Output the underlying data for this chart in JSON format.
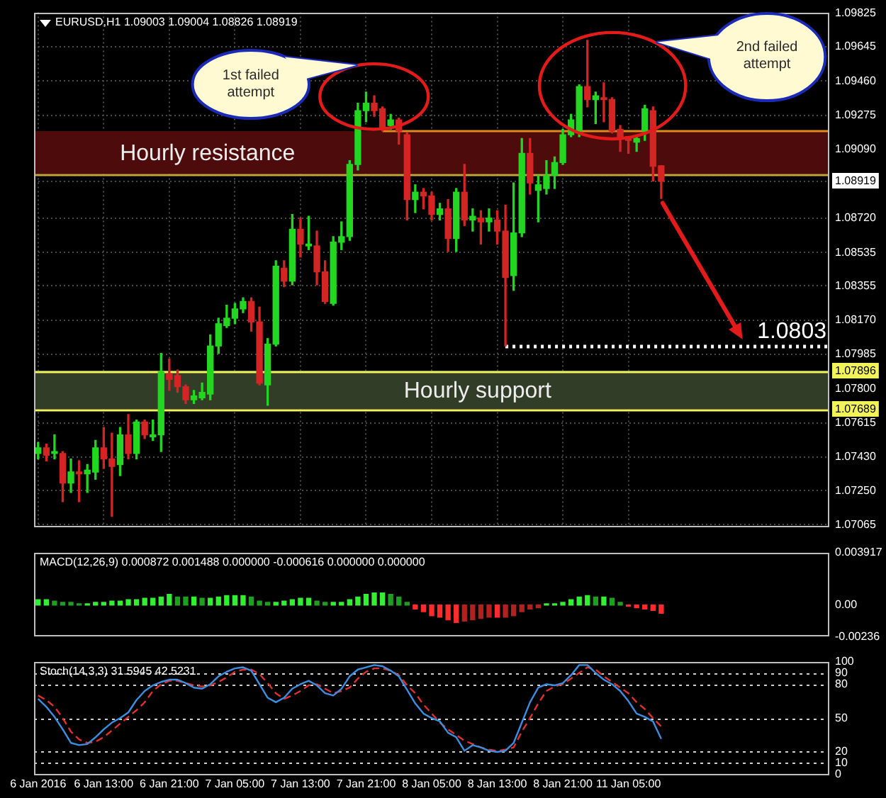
{
  "chart_data": [
    {
      "type": "candlestick",
      "title": "EURUSD,H1 1.09003 1.09004 1.08826 1.08919",
      "categories": [
        null,
        null,
        null,
        null,
        null,
        null,
        null,
        null,
        null,
        null,
        null,
        null,
        null,
        null,
        null,
        null,
        null,
        null,
        null,
        null,
        null,
        null,
        null,
        null,
        null,
        null,
        null,
        null,
        null,
        null,
        null,
        null,
        null,
        null,
        null,
        null,
        null,
        null,
        null,
        null,
        null,
        null,
        null,
        null,
        null,
        null,
        null,
        null,
        null,
        null,
        null,
        null,
        null,
        null,
        null,
        null,
        null,
        null,
        null,
        null,
        null,
        null,
        null,
        null,
        null,
        null,
        null,
        null,
        null,
        null,
        null,
        null,
        null,
        null,
        null,
        null,
        null,
        null,
        null,
        null,
        null,
        null,
        null,
        null,
        null,
        null,
        null,
        null,
        null,
        null,
        null,
        null,
        null,
        null,
        null,
        null,
        null
      ],
      "ohlc": [
        [
          1.0745,
          1.0751,
          1.0742,
          1.0748
        ],
        [
          1.0748,
          1.075,
          1.0741,
          1.0744
        ],
        [
          1.0745,
          1.0755,
          1.0742,
          1.0746
        ],
        [
          1.0745,
          1.0746,
          1.0719,
          1.0729
        ],
        [
          1.0729,
          1.0742,
          1.0724,
          1.0735
        ],
        [
          1.0735,
          1.0741,
          1.0719,
          1.0734
        ],
        [
          1.0734,
          1.0739,
          1.0724,
          1.0736
        ],
        [
          1.0735,
          1.0752,
          1.0731,
          1.0748
        ],
        [
          1.0748,
          1.0759,
          1.0737,
          1.0742
        ],
        [
          1.0742,
          1.0756,
          1.0711,
          1.0738
        ],
        [
          1.0739,
          1.0759,
          1.0733,
          1.0755
        ],
        [
          1.0755,
          1.0766,
          1.0742,
          1.0745
        ],
        [
          1.0745,
          1.0763,
          1.0742,
          1.0762
        ],
        [
          1.0762,
          1.0763,
          1.0753,
          1.0755
        ],
        [
          1.0754,
          1.0763,
          1.0752,
          1.0755
        ],
        [
          1.0755,
          1.0799,
          1.0746,
          1.0789
        ],
        [
          1.0788,
          1.0796,
          1.0779,
          1.0785
        ],
        [
          1.0787,
          1.079,
          1.0778,
          1.0781
        ],
        [
          1.0781,
          1.0782,
          1.0772,
          1.0774
        ],
        [
          1.0774,
          1.0779,
          1.0772,
          1.0776
        ],
        [
          1.0775,
          1.0783,
          1.0774,
          1.0778
        ],
        [
          1.0777,
          1.0809,
          1.0774,
          1.0803
        ],
        [
          1.0803,
          1.0818,
          1.0799,
          1.0815
        ],
        [
          1.0814,
          1.0825,
          1.0813,
          1.0818
        ],
        [
          1.0818,
          1.0826,
          1.0815,
          1.0823
        ],
        [
          1.0823,
          1.0829,
          1.0821,
          1.0827
        ],
        [
          1.0827,
          1.0829,
          1.0811,
          1.0816
        ],
        [
          1.0816,
          1.0824,
          1.0782,
          1.0783
        ],
        [
          1.0782,
          1.0807,
          1.0771,
          1.0804
        ],
        [
          1.0804,
          1.0849,
          1.0803,
          1.0846
        ],
        [
          1.0845,
          1.0849,
          1.0835,
          1.0838
        ],
        [
          1.0838,
          1.0874,
          1.0836,
          1.0866
        ],
        [
          1.0866,
          1.0872,
          1.0851,
          1.0858
        ],
        [
          1.0857,
          1.0873,
          1.0855,
          1.0858
        ],
        [
          1.0857,
          1.0865,
          1.0836,
          1.0843
        ],
        [
          1.0843,
          1.0849,
          1.0826,
          1.0827
        ],
        [
          1.0826,
          1.0862,
          1.0825,
          1.0859
        ],
        [
          1.0859,
          1.087,
          1.0855,
          1.0862
        ],
        [
          1.0862,
          1.0903,
          1.086,
          1.0901
        ],
        [
          1.0901,
          1.0934,
          1.0898,
          1.093
        ],
        [
          1.093,
          1.094,
          1.0924,
          1.0934
        ],
        [
          1.0934,
          1.0938,
          1.0927,
          1.093
        ],
        [
          1.0931,
          1.0932,
          1.0919,
          1.0921
        ],
        [
          1.0922,
          1.0928,
          1.092,
          1.0925
        ],
        [
          1.0925,
          1.0926,
          1.0912,
          1.0919
        ],
        [
          1.0917,
          1.0918,
          1.0871,
          1.0882
        ],
        [
          1.0882,
          1.089,
          1.0875,
          1.0886
        ],
        [
          1.0886,
          1.0888,
          1.0877,
          1.0884
        ],
        [
          1.0884,
          1.0886,
          1.0871,
          1.0874
        ],
        [
          1.0874,
          1.088,
          1.0871,
          1.0877
        ],
        [
          1.0877,
          1.0882,
          1.0854,
          1.0861
        ],
        [
          1.0861,
          1.0888,
          1.0854,
          1.0886
        ],
        [
          1.0886,
          1.0901,
          1.0868,
          1.0871
        ],
        [
          1.0871,
          1.0877,
          1.0865,
          1.0873
        ],
        [
          1.0872,
          1.0876,
          1.0858,
          1.087
        ],
        [
          1.087,
          1.0877,
          1.0865,
          1.0872
        ],
        [
          1.0871,
          1.0876,
          1.0858,
          1.0865
        ],
        [
          1.0865,
          1.0879,
          1.0803,
          1.084
        ],
        [
          1.0841,
          1.0891,
          1.0833,
          1.0864
        ],
        [
          1.0864,
          1.0915,
          1.0862,
          1.0907
        ],
        [
          1.0907,
          1.0915,
          1.0885,
          1.0891
        ],
        [
          1.0887,
          1.0895,
          1.087,
          1.089
        ],
        [
          1.0888,
          1.0903,
          1.0885,
          1.0895
        ],
        [
          1.0895,
          1.0905,
          1.0888,
          1.0902
        ],
        [
          1.0902,
          1.092,
          1.0901,
          1.0917
        ],
        [
          1.0917,
          1.0928,
          1.0916,
          1.0925
        ],
        [
          1.0919,
          1.0944,
          1.0916,
          1.0943
        ],
        [
          1.0943,
          1.0968,
          1.0932,
          1.0936
        ],
        [
          1.0936,
          1.094,
          1.0923,
          1.0938
        ],
        [
          1.0937,
          1.0945,
          1.0924,
          1.0936
        ],
        [
          1.0936,
          1.0937,
          1.0918,
          1.0919
        ],
        [
          1.092,
          1.0922,
          1.0908,
          1.0915
        ],
        [
          1.0916,
          1.0916,
          1.0907,
          1.0914
        ],
        [
          1.0913,
          1.0916,
          1.0908,
          1.0915
        ],
        [
          1.0919,
          1.0933,
          1.0914,
          1.0931
        ],
        [
          1.093,
          1.0932,
          1.0892,
          1.09
        ],
        [
          1.09003,
          1.09004,
          1.08826,
          1.08919
        ],
        null,
        null,
        null,
        null,
        null,
        null,
        null,
        null,
        null,
        null,
        null,
        null,
        null,
        null,
        null,
        null,
        null,
        null,
        null,
        null
      ],
      "colors": [
        "#22d622",
        "#d42424",
        "#22d622",
        "#d42424",
        "#22d622",
        "#d42424",
        "#22d622",
        "#22d622",
        "#d42424",
        "#d42424",
        "#22d622",
        "#d42424",
        "#22d622",
        "#d42424",
        "#22d622",
        "#22d622",
        "#d42424",
        "#d42424",
        "#d42424",
        "#22d622",
        "#22d622",
        "#22d622",
        "#22d622",
        "#22d622",
        "#22d622",
        "#22d622",
        "#d42424",
        "#d42424",
        "#22d622",
        "#22d622",
        "#d42424",
        "#22d622",
        "#d42424",
        "#22d622",
        "#d42424",
        "#d42424",
        "#22d622",
        "#22d622",
        "#22d622",
        "#22d622",
        "#22d622",
        "#d42424",
        "#d42424",
        "#22d622",
        "#d42424",
        "#d42424",
        "#22d622",
        "#d42424",
        "#d42424",
        "#22d622",
        "#d42424",
        "#22d622",
        "#d42424",
        "#22d622",
        "#d42424",
        "#22d622",
        "#d42424",
        "#d42424",
        "#22d622",
        "#22d622",
        "#d42424",
        "#22d622",
        "#22d622",
        "#22d622",
        "#22d622",
        "#22d622",
        "#22d622",
        "#d42424",
        "#22d622",
        "#d42424",
        "#d42424",
        "#d42424",
        "#d42424",
        "#22d622",
        "#22d622",
        "#d42424",
        "#d42424",
        null,
        null,
        null,
        null,
        null,
        null,
        null,
        null,
        null,
        null,
        null,
        null,
        null,
        null,
        null,
        null,
        null,
        null,
        null,
        null
      ],
      "ylim": [
        1.0705,
        1.0983
      ],
      "yticks": [
        1.09825,
        1.09645,
        {
          "value": 1.0946,
          "label": "1.09460"
        },
        1.09275,
        {
          "value": 1.0909,
          "label": "1.09090"
        },
        1.08919,
        {
          "value": 1.0872,
          "label": "1.08720"
        },
        1.08535,
        1.08355,
        {
          "value": 1.0817,
          "label": "1.08170"
        },
        1.07985,
        {
          "value": 1.078,
          "label": "1.07800"
        },
        1.07615,
        {
          "value": 1.0743,
          "label": "1.07430"
        },
        {
          "value": 1.0725,
          "label": "1.07250"
        },
        1.07065
      ],
      "grid": true,
      "tick_labels": "y",
      "bands": [
        {
          "axis": "y",
          "from": 1.0896,
          "to": 1.0919,
          "label": "Hourly resistance",
          "color": "#4d0b0b"
        },
        {
          "axis": "y",
          "from": 1.07689,
          "to": 1.07896,
          "label": "Hourly support",
          "color": "#323d27"
        }
      ],
      "ref_lines": [
        {
          "axis": "y",
          "value": 1.0919,
          "color": "#e0891f"
        },
        {
          "axis": "y",
          "value": 1.0896,
          "color": "#c9a43c"
        },
        {
          "axis": "y",
          "value": 1.07896,
          "label": "1.07896",
          "color": "#f2f25a"
        },
        {
          "axis": "y",
          "value": 1.07689,
          "label": "1.07689",
          "color": "#f2f25a"
        },
        {
          "axis": "y",
          "value": 1.0803,
          "label": "1.0803",
          "color": "#ffffff",
          "line_style": "dotted"
        }
      ],
      "annotations": [
        "1st failed attempt",
        "2nd failed attempt"
      ]
    },
    {
      "type": "bar",
      "title": "MACD(12,26,9) 0.000872 0.001488 0.000000 -0.000616 0.000000 0.000000",
      "categories": [
        null,
        null,
        null,
        null,
        null,
        null,
        null,
        null,
        null,
        null,
        null,
        null,
        null,
        null,
        null,
        null,
        null,
        null,
        null,
        null,
        null,
        null,
        null,
        null,
        null,
        null,
        null,
        null,
        null,
        null,
        null,
        null,
        null,
        null,
        null,
        null,
        null,
        null,
        null,
        null,
        null,
        null,
        null,
        null,
        null,
        null,
        null,
        null,
        null,
        null,
        null,
        null,
        null,
        null,
        null,
        null,
        null,
        null,
        null,
        null,
        null,
        null,
        null,
        null,
        null,
        null,
        null,
        null,
        null,
        null,
        null,
        null,
        null,
        null,
        null,
        null,
        null,
        null,
        null,
        null,
        null,
        null,
        null,
        null,
        null,
        null,
        null,
        null,
        null,
        null,
        null,
        null,
        null,
        null,
        null,
        null,
        null
      ],
      "values": [
        0.0004,
        0.0004,
        0.0003,
        0.0002,
        0.0002,
        0.0001,
        0.0001,
        0.0002,
        0.0002,
        0.0003,
        0.0003,
        0.0004,
        0.0004,
        0.0005,
        0.0005,
        0.0006,
        0.0008,
        0.0006,
        0.0006,
        0.0006,
        0.0005,
        0.0005,
        0.0006,
        0.0007,
        0.0007,
        0.0007,
        0.0006,
        0.0003,
        0.0002,
        0.0002,
        0.0003,
        0.0004,
        0.0005,
        0.0005,
        0.0003,
        0.0002,
        0.0002,
        0.0002,
        0.0004,
        0.0006,
        0.0008,
        0.0009,
        0.0009,
        0.0008,
        0.0006,
        0.0002,
        -0.0003,
        -0.0005,
        -0.0008,
        -0.0009,
        -0.0011,
        -0.0013,
        -0.0012,
        -0.0011,
        -0.001,
        -0.0009,
        -0.0009,
        -0.0009,
        -0.0008,
        -0.0005,
        -0.0003,
        -0.0002,
        0.0001,
        0.0001,
        0.0002,
        0.0004,
        0.0006,
        0.0007,
        0.0006,
        0.0006,
        0.0005,
        0.0002,
        -0.0001,
        -0.0002,
        -0.0003,
        -0.0004,
        -0.000616,
        null,
        null,
        null,
        null,
        null,
        null,
        null,
        null,
        null,
        null,
        null,
        null,
        null,
        null,
        null,
        null,
        null,
        null,
        null,
        null
      ],
      "colors": [
        "#33ee33",
        "#33ee33",
        "#1f9f1f",
        "#1f9f1f",
        "#1f9f1f",
        "#1f9f1f",
        "#33ee33",
        "#33ee33",
        "#33ee33",
        "#33ee33",
        "#33ee33",
        "#33ee33",
        "#33ee33",
        "#33ee33",
        "#33ee33",
        "#33ee33",
        "#33ee33",
        "#1f9f1f",
        "#1f9f1f",
        "#33ee33",
        "#1f9f1f",
        "#33ee33",
        "#33ee33",
        "#33ee33",
        "#33ee33",
        "#33ee33",
        "#1f9f1f",
        "#1f9f1f",
        "#1f9f1f",
        "#33ee33",
        "#33ee33",
        "#33ee33",
        "#33ee33",
        "#33ee33",
        "#1f9f1f",
        "#1f9f1f",
        "#33ee33",
        "#33ee33",
        "#33ee33",
        "#33ee33",
        "#33ee33",
        "#33ee33",
        "#33ee33",
        "#1f9f1f",
        "#1f9f1f",
        "#1f9f1f",
        "#ff2b2b",
        "#ff2b2b",
        "#ff2b2b",
        "#ff2b2b",
        "#ff2b2b",
        "#ff2b2b",
        "#b32020",
        "#b32020",
        "#b32020",
        "#b32020",
        "#ff2b2b",
        "#b32020",
        "#b32020",
        "#b32020",
        "#b32020",
        "#b32020",
        "#33ee33",
        "#33ee33",
        "#33ee33",
        "#33ee33",
        "#33ee33",
        "#33ee33",
        "#1f9f1f",
        "#33ee33",
        "#1f9f1f",
        "#1f9f1f",
        "#ff2b2b",
        "#ff2b2b",
        "#ff2b2b",
        "#ff2b2b",
        "#ff2b2b",
        null,
        null,
        null,
        null,
        null,
        null,
        null,
        null,
        null,
        null,
        null,
        null,
        null,
        null,
        null,
        null,
        null,
        null,
        null,
        null
      ],
      "ylim": [
        -0.00236,
        0.003917
      ],
      "yticks": [
        -0.00236,
        {
          "value": 0,
          "label": "0.00"
        },
        0.003917
      ],
      "tick_labels": "y"
    },
    {
      "type": "line",
      "title": "Stoch(14,3,3) 31.5945 42.5231",
      "categories": [
        "6 Jan 2016",
        null,
        null,
        null,
        null,
        null,
        null,
        null,
        "6 Jan 13:00",
        null,
        null,
        null,
        null,
        null,
        null,
        null,
        "6 Jan 21:00",
        null,
        null,
        null,
        null,
        null,
        null,
        null,
        "7 Jan 05:00",
        null,
        null,
        null,
        null,
        null,
        null,
        null,
        "7 Jan 13:00",
        null,
        null,
        null,
        null,
        null,
        null,
        null,
        "7 Jan 21:00",
        null,
        null,
        null,
        null,
        null,
        null,
        null,
        "8 Jan 05:00",
        null,
        null,
        null,
        null,
        null,
        null,
        null,
        "8 Jan 13:00",
        null,
        null,
        null,
        null,
        null,
        null,
        null,
        "8 Jan 21:00",
        null,
        null,
        null,
        null,
        null,
        null,
        null,
        "11 Jan 05:00",
        null,
        null,
        null,
        null,
        null,
        null,
        null,
        null,
        null,
        null,
        null,
        null,
        null,
        null,
        null,
        null,
        null,
        null,
        null,
        null,
        null,
        null,
        null,
        null
      ],
      "series": [
        {
          "color": "#3c8fe0",
          "values": [
            67,
            60,
            51,
            40,
            28,
            26,
            27,
            33,
            40,
            46,
            50,
            55,
            66,
            74,
            79,
            82,
            84,
            84,
            81,
            77,
            76,
            80,
            87,
            91,
            94,
            95,
            92,
            80,
            68,
            64,
            68,
            76,
            80,
            83,
            79,
            72,
            70,
            76,
            87,
            93,
            95,
            97,
            96,
            92,
            87,
            75,
            63,
            54,
            50,
            47,
            37,
            33,
            21,
            26,
            24,
            21,
            20,
            21,
            28,
            46,
            64,
            77,
            80,
            79,
            81,
            88,
            97,
            97,
            90,
            84,
            80,
            74,
            65,
            54,
            51,
            47,
            31.5945,
            null,
            null,
            null,
            null,
            null,
            null,
            null,
            null,
            null,
            null,
            null,
            null,
            null,
            null,
            null,
            null,
            null,
            null,
            null,
            null
          ]
        },
        {
          "color": "#e03030",
          "line_style": "dashed",
          "values": [
            70,
            66,
            60,
            50,
            38,
            31,
            28,
            29,
            33,
            39,
            45,
            51,
            57,
            64,
            74,
            80,
            83,
            83,
            81,
            79,
            78,
            79,
            82,
            86,
            91,
            93,
            93,
            89,
            81,
            72,
            67,
            70,
            74,
            79,
            80,
            76,
            72,
            74,
            77,
            85,
            91,
            94,
            94,
            92,
            88,
            79,
            72,
            62,
            54,
            46,
            40,
            35,
            30,
            27,
            24,
            22,
            21,
            22,
            24,
            38,
            50,
            63,
            74,
            78,
            80,
            85,
            90,
            95,
            93,
            87,
            82,
            77,
            72,
            64,
            58,
            50,
            42.5231,
            null,
            null,
            null,
            null,
            null,
            null,
            null,
            null,
            null,
            null,
            null,
            null,
            null,
            null,
            null,
            null,
            null,
            null,
            null,
            null
          ]
        }
      ],
      "ylim": [
        0,
        100
      ],
      "yticks": [
        0,
        10,
        20,
        50,
        80,
        90,
        100
      ],
      "ref_lines": [
        {
          "axis": "y",
          "value": 90,
          "color": "#cfcfcf",
          "line_style": "dotted"
        },
        {
          "axis": "y",
          "value": 80,
          "color": "#cfcfcf",
          "line_style": "dotted"
        },
        {
          "axis": "y",
          "value": 50,
          "color": "#cfcfcf",
          "line_style": "dotted"
        },
        {
          "axis": "y",
          "value": 20,
          "color": "#cfcfcf",
          "line_style": "dotted"
        },
        {
          "axis": "y",
          "value": 10,
          "color": "#cfcfcf",
          "line_style": "dotted"
        }
      ]
    }
  ]
}
